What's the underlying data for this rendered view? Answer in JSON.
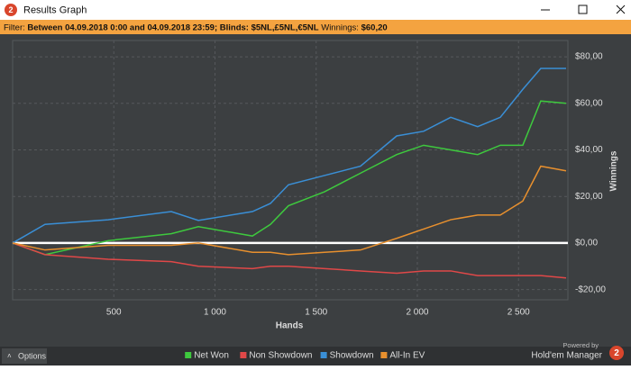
{
  "window": {
    "title": "Results Graph"
  },
  "filter": {
    "label": "Filter:",
    "range": "Between 04.09.2018 0:00 and 04.09.2018 23:59;",
    "blinds_label": "Blinds:",
    "blinds": "$5NL,£5NL,€5NL",
    "winnings_label": "Winnings:",
    "winnings": "$60,20"
  },
  "chart_data": {
    "type": "line",
    "xlabel": "Hands",
    "ylabel": "Winnings",
    "x": [
      0,
      160,
      472,
      784,
      918,
      1185,
      1274,
      1363,
      1541,
      1719,
      1898,
      2031,
      2165,
      2298,
      2410,
      2521,
      2610,
      2735
    ],
    "series": [
      {
        "name": "Net Won",
        "color": "#3ec93e",
        "values": [
          0,
          -5,
          1,
          4,
          7,
          3,
          8,
          16,
          22,
          30,
          38,
          42,
          40,
          38,
          42,
          42,
          61,
          60
        ]
      },
      {
        "name": "Non Showdown",
        "color": "#e04848",
        "values": [
          0,
          -5,
          -7,
          -8,
          -10,
          -11,
          -10,
          -10,
          -11,
          -12,
          -13,
          -12,
          -12,
          -14,
          -14,
          -14,
          -14,
          -15
        ]
      },
      {
        "name": "Showdown",
        "color": "#3a8fd6",
        "values": [
          0,
          8,
          10,
          13.5,
          9.7,
          13.5,
          17,
          25,
          29,
          33,
          46,
          48,
          54,
          50,
          54,
          66,
          75,
          75
        ]
      },
      {
        "name": "All-In EV",
        "color": "#e8902e",
        "values": [
          0,
          -3,
          -1,
          -1,
          0,
          -4,
          -4,
          -5,
          -4,
          -3,
          2,
          6,
          10,
          12,
          12,
          18,
          33,
          31
        ]
      }
    ],
    "xlim": [
      0,
      2744
    ],
    "ylim": [
      -24.4,
      87
    ],
    "xticks": [
      500,
      {
        "value": 1000,
        "label": "1 000"
      },
      {
        "value": 1500,
        "label": "1 500"
      },
      {
        "value": 2000,
        "label": "2 000"
      },
      {
        "value": 2500,
        "label": "2 500"
      }
    ],
    "yticks": [
      {
        "value": -20,
        "label": "-$20,00"
      },
      {
        "value": 0,
        "label": "$0,00"
      },
      {
        "value": 20,
        "label": "$20,00"
      },
      {
        "value": 40,
        "label": "$40,00"
      },
      {
        "value": 60,
        "label": "$60,00"
      },
      {
        "value": 80,
        "label": "$80,00"
      }
    ],
    "grid": true
  },
  "footer": {
    "options": "Options",
    "powered_by": "Powered by",
    "brand": "Hold'em Manager"
  }
}
